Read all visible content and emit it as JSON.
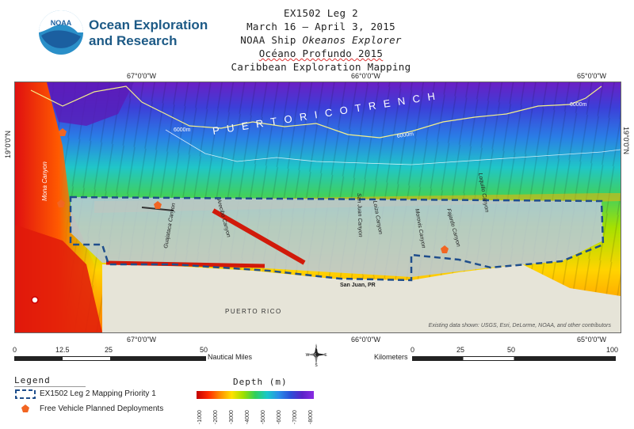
{
  "org": {
    "line1": "Ocean Exploration",
    "line2": "and Research",
    "logo_text": "NOAA"
  },
  "title": {
    "line1": "EX1502 Leg 2",
    "line2": "March 16 – April 3, 2015",
    "line3_prefix": "NOAA Ship ",
    "line3_ship": "Okeanos Explorer",
    "line4": "Océano Profundo 2015",
    "line5": "Caribbean Exploration Mapping"
  },
  "map": {
    "top_lon": [
      "67°0'0\"W",
      "66°0'0\"W",
      "65°0'0\"W"
    ],
    "bottom_lon": [
      "67°0'0\"W",
      "66°0'0\"W",
      "65°0'0\"W"
    ],
    "lat": "19°0'0\"N",
    "labels": {
      "trench": "P U E R T O   R I C O   T R E N C H",
      "contour1": "6000m",
      "contour2": "6000m",
      "contour3": "6000m",
      "mona": "Mona Canyon",
      "guajataca": "Guajataca Canyon",
      "arecibo": "Arecibo Canyon",
      "sanjuan": "San Juan Canyon",
      "loiza": "Loiza Canyon",
      "morovis": "Morovis Canyon",
      "fajardo": "Fajardo Canyon",
      "loquillo": "Loquillo Canyon",
      "city": "San Juan, PR",
      "island": "PUERTO RICO",
      "attribution": "Existing data shown: USGS, Esri, DeLorme, NOAA, and other contributors"
    }
  },
  "scale": {
    "nm_ticks": [
      "0",
      "12.5",
      "25",
      "50"
    ],
    "nm_unit": "Nautical Miles",
    "km_unit": "Kilometers",
    "km_ticks": [
      "0",
      "25",
      "50",
      "100"
    ],
    "compass": {
      "n": "N",
      "s": "S",
      "e": "E",
      "w": "W"
    }
  },
  "legend": {
    "title": "Legend",
    "item1": "EX1502 Leg 2 Mapping Priority 1",
    "item2": "Free Vehicle Planned Deployments"
  },
  "depth": {
    "title": "Depth (m)",
    "ticks": [
      "-1000",
      "-2000",
      "-3000",
      "-4000",
      "-5000",
      "-6000",
      "-7000",
      "-8000"
    ]
  },
  "colors": {
    "priority_line": "#1f4e8c",
    "deployment": "#f26522",
    "org_text": "#1d5a86"
  }
}
